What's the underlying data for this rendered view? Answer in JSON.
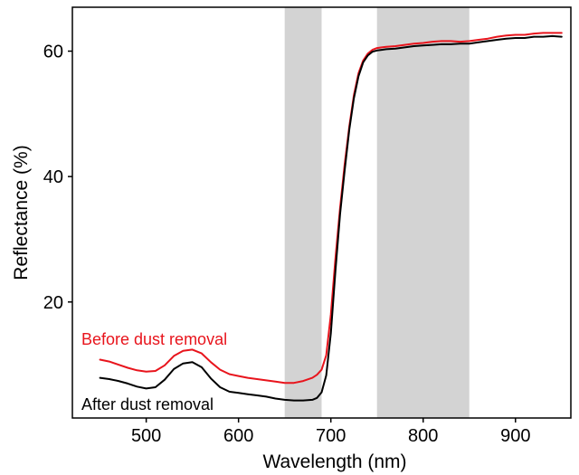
{
  "chart_data": {
    "type": "line",
    "title": "",
    "xlabel": "Wavelength (nm)",
    "ylabel": "Reflectance (%)",
    "xlim": [
      420,
      960
    ],
    "ylim": [
      1.5,
      67
    ],
    "x_ticks": [
      500,
      600,
      700,
      800,
      900
    ],
    "y_ticks": [
      20,
      40,
      60
    ],
    "grid": false,
    "legend": "none",
    "shaded_bands": [
      {
        "from": 650,
        "to": 690,
        "color": "#d3d3d3"
      },
      {
        "from": 750,
        "to": 850,
        "color": "#d3d3d3"
      }
    ],
    "series": [
      {
        "name": "Before dust removal",
        "color": "#e8141c",
        "x": [
          450,
          460,
          470,
          480,
          490,
          500,
          510,
          520,
          530,
          540,
          550,
          560,
          570,
          580,
          590,
          600,
          610,
          620,
          630,
          640,
          650,
          660,
          670,
          680,
          685,
          690,
          695,
          700,
          705,
          710,
          715,
          720,
          725,
          730,
          735,
          740,
          745,
          750,
          755,
          760,
          770,
          780,
          790,
          800,
          810,
          820,
          830,
          840,
          850,
          860,
          870,
          880,
          890,
          900,
          910,
          920,
          930,
          940,
          950
        ],
        "values": [
          10.8,
          10.5,
          10.0,
          9.5,
          9.1,
          8.9,
          9.0,
          9.9,
          11.4,
          12.2,
          12.4,
          11.8,
          10.4,
          9.2,
          8.5,
          8.2,
          7.9,
          7.7,
          7.5,
          7.3,
          7.1,
          7.1,
          7.4,
          7.9,
          8.4,
          9.2,
          11.5,
          18.0,
          27.0,
          35.0,
          42.0,
          48.0,
          53.0,
          56.5,
          58.5,
          59.6,
          60.2,
          60.5,
          60.6,
          60.7,
          60.8,
          61.0,
          61.2,
          61.3,
          61.5,
          61.6,
          61.6,
          61.5,
          61.6,
          61.8,
          62.0,
          62.3,
          62.5,
          62.6,
          62.6,
          62.8,
          62.9,
          62.9,
          62.9
        ]
      },
      {
        "name": "After dust removal",
        "color": "#000000",
        "x": [
          450,
          460,
          470,
          480,
          490,
          500,
          510,
          520,
          530,
          540,
          550,
          560,
          570,
          580,
          590,
          600,
          610,
          620,
          630,
          640,
          650,
          660,
          670,
          680,
          685,
          690,
          695,
          700,
          705,
          710,
          715,
          720,
          725,
          730,
          735,
          740,
          745,
          750,
          755,
          760,
          770,
          780,
          790,
          800,
          810,
          820,
          830,
          840,
          850,
          860,
          870,
          880,
          890,
          900,
          910,
          920,
          930,
          940,
          950
        ],
        "values": [
          7.9,
          7.7,
          7.4,
          7.0,
          6.5,
          6.2,
          6.4,
          7.6,
          9.3,
          10.2,
          10.4,
          9.6,
          7.8,
          6.4,
          5.7,
          5.5,
          5.3,
          5.1,
          4.9,
          4.6,
          4.4,
          4.3,
          4.3,
          4.4,
          4.7,
          5.6,
          8.3,
          15.0,
          25.0,
          34.0,
          41.0,
          47.5,
          52.5,
          56.0,
          58.2,
          59.3,
          59.9,
          60.1,
          60.2,
          60.3,
          60.4,
          60.6,
          60.8,
          60.9,
          61.0,
          61.1,
          61.1,
          61.2,
          61.2,
          61.4,
          61.6,
          61.8,
          62.0,
          62.1,
          62.1,
          62.3,
          62.3,
          62.4,
          62.3
        ]
      }
    ],
    "annotations": [
      {
        "text": "Before dust removal",
        "color": "#e8141c"
      },
      {
        "text": "After dust removal",
        "color": "#000000"
      }
    ]
  }
}
